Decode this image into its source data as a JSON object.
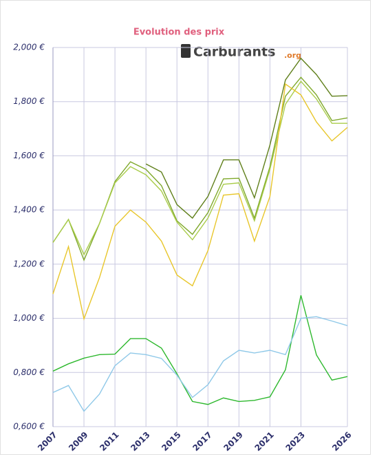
{
  "chart_data": {
    "type": "line",
    "title": "Evolution des prix",
    "logo": {
      "main": "Carburants",
      "suffix": ".org"
    },
    "x": [
      2007,
      2008,
      2009,
      2010,
      2011,
      2012,
      2013,
      2014,
      2015,
      2016,
      2017,
      2018,
      2019,
      2020,
      2021,
      2022,
      2023,
      2024,
      2025,
      2026
    ],
    "xlim": [
      2007,
      2026
    ],
    "xticks": [
      2007,
      2009,
      2011,
      2013,
      2015,
      2017,
      2019,
      2021,
      2023,
      2026
    ],
    "ylim": [
      0.6,
      2.0
    ],
    "yticks": [
      {
        "value": 0.6,
        "label": "0,600 €"
      },
      {
        "value": 0.8,
        "label": "0,800 €"
      },
      {
        "value": 1.0,
        "label": "1,000 €"
      },
      {
        "value": 1.2,
        "label": "1,200 €"
      },
      {
        "value": 1.4,
        "label": "1,400 €"
      },
      {
        "value": 1.6,
        "label": "1,600 €"
      },
      {
        "value": 1.8,
        "label": "1,800 €"
      },
      {
        "value": 2.0,
        "label": "2,000 €"
      }
    ],
    "grid": true,
    "series": [
      {
        "color": "#5f7f1a",
        "values": [
          null,
          null,
          null,
          null,
          null,
          null,
          1.57,
          1.54,
          1.42,
          1.37,
          1.45,
          1.585,
          1.585,
          1.445,
          1.64,
          1.88,
          1.96,
          1.9,
          1.82,
          1.822
        ]
      },
      {
        "color": "#7ea82a",
        "values": [
          1.28,
          1.365,
          1.215,
          1.35,
          1.505,
          1.578,
          1.55,
          1.49,
          1.36,
          1.31,
          1.39,
          1.515,
          1.517,
          1.37,
          1.56,
          1.82,
          1.89,
          1.825,
          1.73,
          1.74
        ]
      },
      {
        "color": "#a9cc4a",
        "values": [
          1.28,
          1.365,
          1.235,
          1.35,
          1.5,
          1.56,
          1.53,
          1.47,
          1.355,
          1.29,
          1.37,
          1.495,
          1.5,
          1.36,
          1.55,
          1.79,
          1.875,
          1.81,
          1.72,
          1.72
        ]
      },
      {
        "color": "#e8c62a",
        "values": [
          1.09,
          1.265,
          0.998,
          1.15,
          1.34,
          1.4,
          1.355,
          1.285,
          1.16,
          1.12,
          1.25,
          1.455,
          1.46,
          1.285,
          1.45,
          1.865,
          1.825,
          1.725,
          1.655,
          1.705
        ]
      },
      {
        "color": "#2db82d",
        "values": [
          0.805,
          0.832,
          0.853,
          0.866,
          0.868,
          0.925,
          0.925,
          0.89,
          0.795,
          0.693,
          0.682,
          0.706,
          0.693,
          0.697,
          0.71,
          0.81,
          1.085,
          0.865,
          0.772,
          0.785
        ]
      },
      {
        "color": "#8ec8e8",
        "values": [
          0.726,
          0.752,
          0.657,
          0.72,
          0.825,
          0.872,
          0.866,
          0.852,
          0.79,
          0.708,
          0.755,
          0.843,
          0.882,
          0.872,
          0.882,
          0.866,
          1.0,
          1.006,
          0.99,
          0.973
        ]
      }
    ]
  }
}
